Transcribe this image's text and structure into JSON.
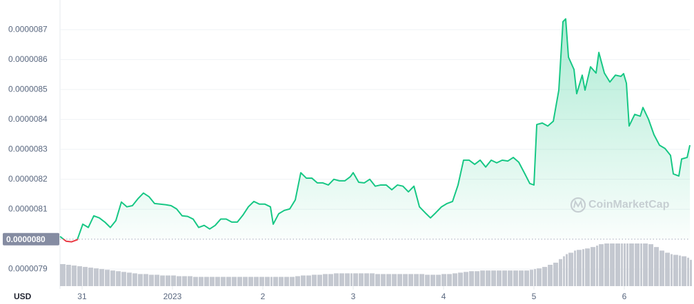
{
  "chart_data": {
    "type": "line",
    "currency": "USD",
    "watermark": "CoinMarketCap",
    "xlim": [
      -0.244,
      6.725
    ],
    "xticks": [
      {
        "value": 0,
        "label": "31"
      },
      {
        "value": 1,
        "label": "2023"
      },
      2,
      3,
      4,
      5,
      6
    ],
    "ylim": [
      7.843e-06,
      8.79e-06
    ],
    "yticks": [
      {
        "value": 7.9e-06,
        "label": "0.0000079"
      },
      {
        "value": 8.1e-06,
        "label": "0.0000081"
      },
      {
        "value": 8.2e-06,
        "label": "0.0000082"
      },
      {
        "value": 8.3e-06,
        "label": "0.0000083"
      },
      {
        "value": 8.4e-06,
        "label": "0.0000084"
      },
      {
        "value": 8.5e-06,
        "label": "0.0000085"
      },
      {
        "value": 8.6e-06,
        "label": "0.0000086"
      },
      {
        "value": 8.7e-06,
        "label": "0.0000087"
      }
    ],
    "baseline": {
      "value": 8e-06,
      "label": "0.0000080"
    },
    "grid": true,
    "x": [
      -0.244,
      -0.176,
      -0.115,
      -0.053,
      0.008,
      0.069,
      0.13,
      0.191,
      0.252,
      0.313,
      0.374,
      0.435,
      0.496,
      0.557,
      0.618,
      0.679,
      0.74,
      0.802,
      0.863,
      0.924,
      0.985,
      1.046,
      1.107,
      1.168,
      1.229,
      1.29,
      1.351,
      1.412,
      1.473,
      1.534,
      1.595,
      1.656,
      1.718,
      1.779,
      1.84,
      1.901,
      1.962,
      2.023,
      2.084,
      2.115,
      2.176,
      2.237,
      2.298,
      2.359,
      2.42,
      2.481,
      2.542,
      2.603,
      2.664,
      2.725,
      2.786,
      2.847,
      2.908,
      2.969,
      3.0,
      3.061,
      3.122,
      3.183,
      3.244,
      3.305,
      3.366,
      3.427,
      3.489,
      3.55,
      3.611,
      3.672,
      3.733,
      3.794,
      3.855,
      3.916,
      3.977,
      4.038,
      4.099,
      4.16,
      4.221,
      4.282,
      4.344,
      4.405,
      4.466,
      4.527,
      4.588,
      4.649,
      4.71,
      4.771,
      4.832,
      4.893,
      4.954,
      5.0,
      5.031,
      5.092,
      5.153,
      5.214,
      5.275,
      5.321,
      5.351,
      5.382,
      5.443,
      5.473,
      5.534,
      5.565,
      5.626,
      5.687,
      5.718,
      5.779,
      5.84,
      5.901,
      5.962,
      5.992,
      6.023,
      6.053,
      6.115,
      6.176,
      6.206,
      6.267,
      6.328,
      6.389,
      6.45,
      6.511,
      6.542,
      6.603,
      6.634,
      6.695,
      6.725
    ],
    "series": [
      {
        "color": "#16c784",
        "down_color": "#ea3943",
        "values": [
          8.009e-06,
          7.993e-06,
          7.991e-06,
          7.998e-06,
          8.05e-06,
          8.039e-06,
          8.078e-06,
          8.071e-06,
          8.057e-06,
          8.039e-06,
          8.062e-06,
          8.124e-06,
          8.108e-06,
          8.112e-06,
          8.135e-06,
          8.154e-06,
          8.142e-06,
          8.119e-06,
          8.117e-06,
          8.115e-06,
          8.112e-06,
          8.101e-06,
          8.078e-06,
          8.076e-06,
          8.067e-06,
          8.039e-06,
          8.046e-06,
          8.034e-06,
          8.046e-06,
          8.067e-06,
          8.067e-06,
          8.057e-06,
          8.057e-06,
          8.08e-06,
          8.108e-06,
          8.126e-06,
          8.117e-06,
          8.117e-06,
          8.108e-06,
          8.05e-06,
          8.085e-06,
          8.096e-06,
          8.101e-06,
          8.131e-06,
          8.222e-06,
          8.204e-06,
          8.204e-06,
          8.188e-06,
          8.188e-06,
          8.181e-06,
          8.2e-06,
          8.195e-06,
          8.195e-06,
          8.209e-06,
          8.222e-06,
          8.19e-06,
          8.188e-06,
          8.2e-06,
          8.177e-06,
          8.181e-06,
          8.181e-06,
          8.165e-06,
          8.181e-06,
          8.177e-06,
          8.158e-06,
          8.177e-06,
          8.108e-06,
          8.089e-06,
          8.071e-06,
          8.089e-06,
          8.108e-06,
          8.119e-06,
          8.126e-06,
          8.181e-06,
          8.264e-06,
          8.264e-06,
          8.25e-06,
          8.264e-06,
          8.241e-06,
          8.264e-06,
          8.255e-06,
          8.264e-06,
          8.261e-06,
          8.273e-06,
          8.257e-06,
          8.222e-06,
          8.186e-06,
          8.181e-06,
          8.383e-06,
          8.388e-06,
          8.378e-06,
          8.394e-06,
          8.498e-06,
          8.727e-06,
          8.736e-06,
          8.608e-06,
          8.567e-06,
          8.486e-06,
          8.548e-06,
          8.498e-06,
          8.576e-06,
          8.555e-06,
          8.624e-06,
          8.555e-06,
          8.525e-06,
          8.548e-06,
          8.544e-06,
          8.553e-06,
          8.521e-06,
          8.378e-06,
          8.417e-06,
          8.411e-06,
          8.44e-06,
          8.401e-06,
          8.349e-06,
          8.314e-06,
          8.303e-06,
          8.28e-06,
          8.218e-06,
          8.211e-06,
          8.268e-06,
          8.273e-06,
          8.314e-06
        ]
      }
    ],
    "volume": {
      "color": "#c4c8d0",
      "values": [
        31,
        30,
        29,
        28,
        27,
        26,
        25,
        24,
        23,
        22,
        21,
        20,
        19,
        18,
        17,
        17,
        16,
        16,
        15,
        15,
        15,
        14,
        14,
        14,
        13,
        13,
        13,
        13,
        13,
        13,
        13,
        13,
        13,
        13,
        13,
        13,
        13,
        13,
        13,
        13,
        13,
        13,
        13,
        14,
        15,
        15,
        16,
        16,
        17,
        17,
        18,
        18,
        18,
        18,
        18,
        18,
        18,
        18,
        17,
        17,
        17,
        17,
        17,
        17,
        17,
        17,
        17,
        16,
        16,
        16,
        17,
        17,
        18,
        19,
        20,
        21,
        21,
        22,
        22,
        22,
        22,
        22,
        22,
        22,
        22,
        22,
        23,
        24,
        25,
        27,
        30,
        33,
        38,
        42,
        45,
        47,
        50,
        51,
        52,
        53,
        55,
        57,
        59,
        60,
        60,
        60,
        60,
        60,
        60,
        60,
        60,
        60,
        60,
        59,
        55,
        50,
        47,
        45,
        44,
        43,
        42,
        40,
        37
      ]
    }
  }
}
